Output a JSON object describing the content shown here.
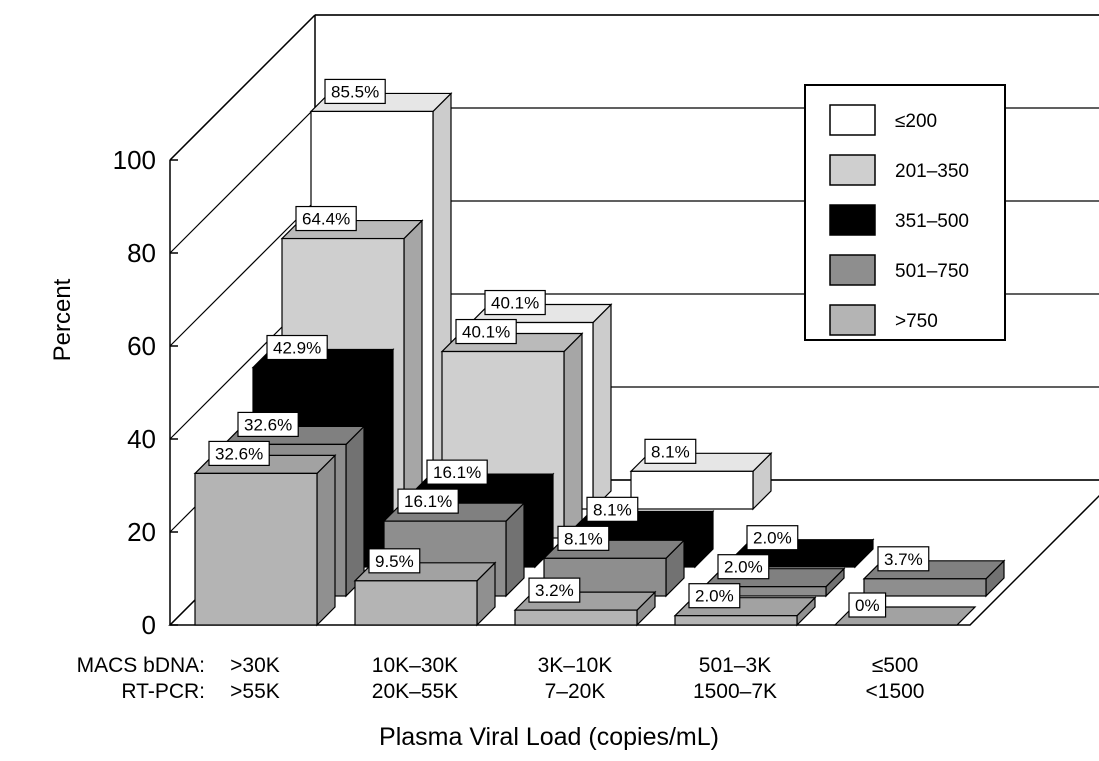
{
  "chart_data": {
    "type": "bar3d",
    "y_label": "Percent",
    "x_label": "Plasma Viral Load (copies/mL)",
    "category_row_labels": [
      "MACS bDNA:",
      "RT-PCR:"
    ],
    "categories": [
      ">30K",
      "10K–30K",
      "3K–10K",
      "501–3K",
      "≤500"
    ],
    "categories_rt_pcr": [
      ">55K",
      "20K–55K",
      "7–20K",
      "1500–7K",
      "<1500"
    ],
    "ylim": [
      0,
      100
    ],
    "yticks": [
      0,
      20,
      40,
      60,
      80,
      100
    ],
    "grid": true,
    "legend": "upper right",
    "series": [
      {
        "name": "≤200",
        "color": "#ffffff",
        "values": [
          85.5,
          40.1,
          8.1,
          null,
          null
        ],
        "value_labels": [
          "85.5%",
          "40.1%",
          "8.1%",
          null,
          null
        ]
      },
      {
        "name": "201–350",
        "color": "#cfcfcf",
        "values": [
          64.4,
          40.1,
          null,
          null,
          null
        ],
        "value_labels": [
          "64.4%",
          "40.1%",
          null,
          null,
          null
        ]
      },
      {
        "name": "351–500",
        "color": "#000000",
        "values": [
          42.9,
          16.1,
          8.1,
          2.0,
          null
        ],
        "value_labels": [
          "42.9%",
          "16.1%",
          "8.1%",
          "2.0%",
          null
        ]
      },
      {
        "name": "501–750",
        "color": "#8e8e8e",
        "values": [
          32.6,
          16.1,
          8.1,
          2.0,
          3.7
        ],
        "value_labels": [
          "32.6%",
          "16.1%",
          "8.1%",
          "2.0%",
          "3.7%"
        ]
      },
      {
        "name": ">750",
        "color": "#b4b4b4",
        "values": [
          32.6,
          9.5,
          3.2,
          2.0,
          0
        ],
        "value_labels": [
          "32.6%",
          "9.5%",
          "3.2%",
          "2.0%",
          "0%"
        ]
      }
    ]
  }
}
